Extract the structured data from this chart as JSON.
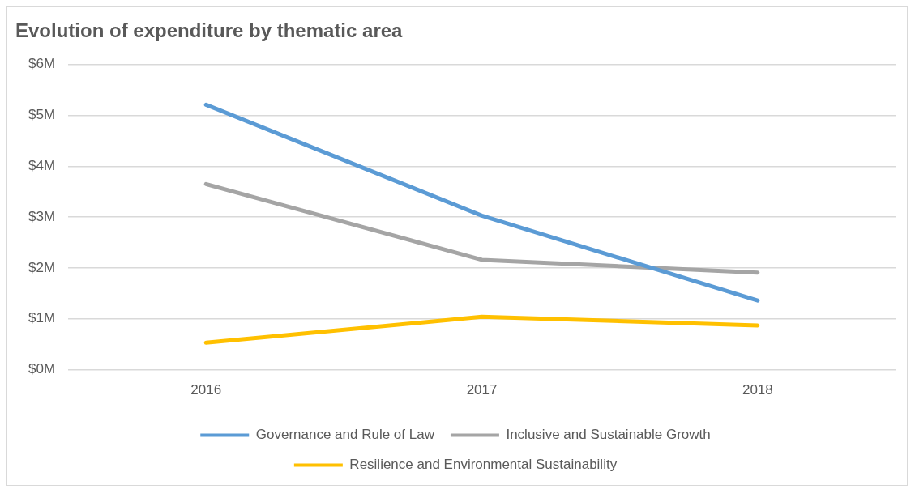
{
  "chart_data": {
    "type": "line",
    "title": "Evolution of expenditure by thematic area",
    "categories": [
      "2016",
      "2017",
      "2018"
    ],
    "series": [
      {
        "name": "Governance and Rule of Law",
        "color": "#5b9bd5",
        "values": [
          5.21,
          3.03,
          1.36
        ]
      },
      {
        "name": "Inclusive and Sustainable Growth",
        "color": "#a5a5a5",
        "values": [
          3.65,
          2.16,
          1.91
        ]
      },
      {
        "name": "Resilience and Environmental Sustainability",
        "color": "#ffc000",
        "values": [
          0.53,
          1.04,
          0.87
        ]
      }
    ],
    "ylim": [
      0,
      6
    ],
    "yticks": [
      {
        "value": 0,
        "label": "$0M"
      },
      {
        "value": 1,
        "label": "$1M"
      },
      {
        "value": 2,
        "label": "$2M"
      },
      {
        "value": 3,
        "label": "$3M"
      },
      {
        "value": 4,
        "label": "$4M"
      },
      {
        "value": 5,
        "label": "$5M"
      },
      {
        "value": 6,
        "label": "$6M"
      }
    ],
    "grid": "y",
    "legend": "bottom",
    "marker": "none",
    "line_style": "solid"
  }
}
